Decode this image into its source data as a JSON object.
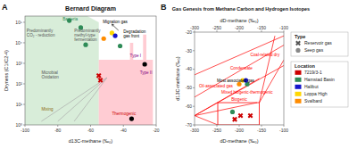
{
  "chart_data": [
    {
      "type": "scatter",
      "title": "Bernard Diagram",
      "panel_label": "A",
      "x_label": "d13C-methane (‰₀)",
      "y_label": "Dryness (C1/C2-4)",
      "xlim": [
        -100,
        -20
      ],
      "ylim": [
        1,
        200000
      ],
      "log": "y",
      "grid": false,
      "xticks": [
        -100,
        -80,
        -60,
        -40,
        -20
      ],
      "yticks": [
        {
          "value": 1,
          "label": "10⁰"
        },
        {
          "value": 10,
          "label": "10¹"
        },
        {
          "value": 100,
          "label": "10²"
        },
        {
          "value": 1000,
          "label": "10³"
        },
        {
          "value": 10000,
          "label": "10⁴"
        },
        {
          "value": 100000,
          "label": "10⁵"
        }
      ],
      "x": [
        -73,
        -66,
        -63,
        -55,
        -54,
        -52,
        -47,
        -45,
        -42,
        -27,
        -35
      ],
      "values": [
        120000,
        55000,
        8000,
        250,
        150,
        16000,
        30000,
        22000,
        7000,
        900,
        2
      ],
      "colors": [
        "#2e8b57",
        "#2e8b57",
        "#2e8b57",
        "#cc0000",
        "#cc0000",
        "#ff8c00",
        "#ffd700",
        "#1414cc",
        "#2e8b57",
        "#000000",
        "#000000"
      ],
      "markers": [
        "circle",
        "circle",
        "circle",
        "x",
        "x",
        "circle",
        "circle",
        "circle",
        "circle",
        "circle",
        "circle"
      ],
      "regions": [
        {
          "color": "#c8e6c9",
          "x": [
            -100,
            -55,
            -55,
            -62,
            -100
          ],
          "y": [
            1,
            1,
            100000,
            200000,
            200000
          ]
        },
        {
          "color": "#ffb6c1",
          "x": [
            -55,
            -22,
            -22,
            -28,
            -28,
            -26,
            -26,
            -36,
            -36,
            -34,
            -34,
            -55,
            -55
          ],
          "y": [
            1,
            1,
            1500,
            1500,
            25000,
            25000,
            1500,
            1500,
            10000,
            10000,
            1500,
            1500,
            1
          ]
        }
      ],
      "lines": [
        {
          "color": "#aaaaaa",
          "x": [
            -90,
            -50
          ],
          "y": [
            1.5,
            200
          ]
        },
        {
          "color": "#aaaaaa",
          "x": [
            -80,
            -50
          ],
          "y": [
            1.5,
            200
          ]
        },
        {
          "color": "#aaaaaa",
          "x": [
            -70,
            -50
          ],
          "y": [
            1.5,
            200
          ]
        }
      ],
      "annotations": [
        {
          "text": "Predominantly\nCO₂ - reduction",
          "x": -99,
          "y": 50000,
          "color": "#555555"
        },
        {
          "text": "Predominantly\nmethyl-type\nfermentation",
          "x": -70,
          "y": 50000,
          "color": "#555555"
        },
        {
          "text": "Bacteria",
          "x": -77,
          "y": 170000,
          "color": "#2e8b57"
        },
        {
          "text": "Microbial\nOxidation",
          "x": -90,
          "y": 300,
          "color": "#555555"
        },
        {
          "text": "Mixing",
          "x": -90,
          "y": 5,
          "color": "#8b6914"
        },
        {
          "text": "Thermogenic",
          "x": -47,
          "y": 3,
          "color": "#cc0000"
        },
        {
          "text": "Type I",
          "x": -36,
          "y": 2000,
          "color": "#800080"
        },
        {
          "text": "Type II",
          "x": -30,
          "y": 300,
          "color": "#800080"
        },
        {
          "text": "Migration gas",
          "x": -45,
          "y": 90000,
          "color": "#000000"
        },
        {
          "text": "Degradation\ngas front",
          "x": -40,
          "y": 30000,
          "color": "#000000"
        }
      ],
      "arrows": [
        {
          "color": "#000000",
          "x": [
            -43,
            -47
          ],
          "y": [
            40000,
            80000
          ]
        }
      ]
    },
    {
      "type": "scatter",
      "title": "Gas Genesis from Methane Carbon and Hydrogen Isotopes",
      "panel_label": "B",
      "x_label": "dD-methane (‰₀)",
      "y_label": "d13C-methane (‰₀)",
      "x2label": "dD-methane (‰₀)",
      "xlim": [
        -300,
        -100
      ],
      "ylim": [
        -70,
        -20
      ],
      "x2lim": [
        -300,
        -100
      ],
      "grid": false,
      "xticks": [
        -300,
        -250,
        -200,
        -150,
        -100
      ],
      "x2ticks": [
        -300,
        -250,
        -200,
        -150,
        -100
      ],
      "yticks": [
        -70,
        -60,
        -50,
        -40,
        -30,
        -20
      ],
      "x": [
        -215,
        -197,
        -210,
        -175,
        -200,
        -192,
        -182,
        -185
      ],
      "values": [
        -63,
        -65,
        -67,
        -65,
        -48,
        -46,
        -48,
        -46
      ],
      "colors": [
        "#2e8b57",
        "#cc0000",
        "#cc0000",
        "#cc0000",
        "#ff8c00",
        "#ffd700",
        "#2e8b57",
        "#1414cc"
      ],
      "markers": [
        "circle",
        "x",
        "x",
        "x",
        "circle",
        "circle",
        "circle",
        "circle"
      ],
      "boxes": [
        {
          "color": "#ff0000",
          "x": [
            -248,
            -155
          ],
          "y": [
            -70,
            -58
          ]
        }
      ],
      "lines": [
        {
          "color": "#ff0000",
          "x": [
            -300,
            -160
          ],
          "y": [
            -65,
            -58
          ]
        },
        {
          "color": "#ff0000",
          "x": [
            -300,
            -248
          ],
          "y": [
            -65,
            -70
          ]
        },
        {
          "color": "#ff0000",
          "x": [
            -155,
            -100
          ],
          "y": [
            -58,
            -35
          ]
        },
        {
          "color": "#ff0000",
          "x": [
            -300,
            -100
          ],
          "y": [
            -55,
            -27
          ]
        },
        {
          "color": "#ff0000",
          "x": [
            -300,
            -100
          ],
          "y": [
            -43,
            -22
          ]
        },
        {
          "color": "#ff0000",
          "x": [
            -300,
            -155
          ],
          "y": [
            -65,
            -45
          ]
        },
        {
          "color": "#ff0000",
          "x": [
            -155,
            -120
          ],
          "y": [
            -58,
            -22
          ]
        },
        {
          "color": "#ff0000",
          "x": [
            -300,
            -100
          ],
          "y": [
            -65,
            -38
          ]
        }
      ],
      "annotations": [
        {
          "text": "Biogenic",
          "x": -200,
          "y": -57,
          "color": "#ff0000"
        },
        {
          "text": "Mixed biogenic-thermogenic",
          "x": -240,
          "y": -53,
          "color": "#ff0000"
        },
        {
          "text": "Oil-associated gas",
          "x": -290,
          "y": -50,
          "color": "#ff0000"
        },
        {
          "text": "Most associated gas",
          "x": -250,
          "y": -47,
          "color": "#000000"
        },
        {
          "text": "Condensate",
          "x": -220,
          "y": -40,
          "color": "#ff0000"
        },
        {
          "text": "Coal-related dry",
          "x": -175,
          "y": -33,
          "color": "#ff0000"
        }
      ],
      "legend": "right",
      "legend_groups": [
        {
          "title": "Type",
          "entries": [
            {
              "name": "Reservoir gas",
              "marker": "x",
              "color": "#555555"
            },
            {
              "name": "Seep gas",
              "marker": "circle",
              "color": "#888888"
            }
          ]
        },
        {
          "title": "Location",
          "entries": [
            {
              "name": "7219/3-1",
              "color": "#cc0000"
            },
            {
              "name": "Hamstad Basin",
              "color": "#2e8b57"
            },
            {
              "name": "Halibut",
              "color": "#1414cc"
            },
            {
              "name": "Loppa High",
              "color": "#ffd700"
            },
            {
              "name": "Svalbard",
              "color": "#ff8c00"
            }
          ]
        }
      ]
    }
  ]
}
